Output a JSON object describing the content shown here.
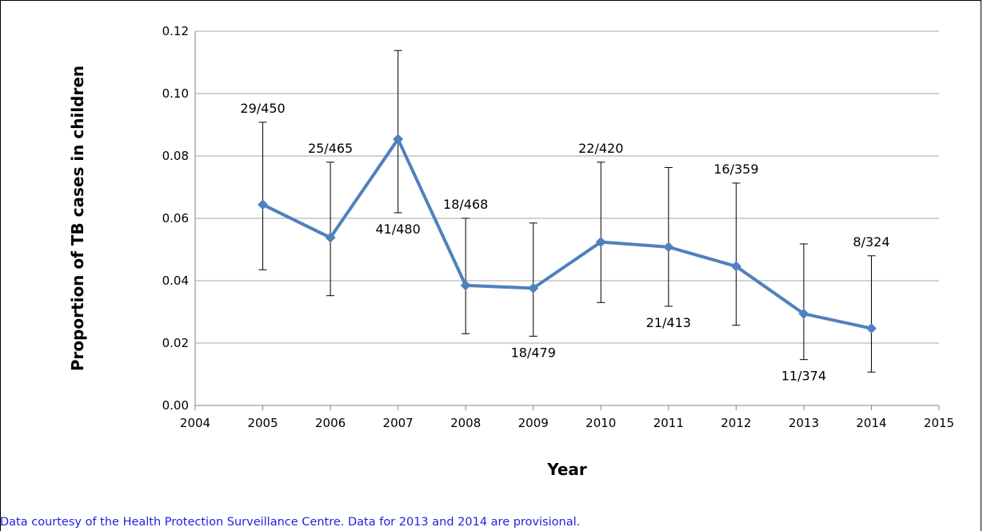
{
  "chart_data": {
    "type": "line",
    "title": "",
    "xlabel": "Year",
    "ylabel": "Proportion of TB cases in children",
    "xlim": [
      2004,
      2015
    ],
    "ylim": [
      0,
      0.12
    ],
    "x_ticks": [
      "2004",
      "2005",
      "2006",
      "2007",
      "2008",
      "2009",
      "2010",
      "2011",
      "2012",
      "2013",
      "2014",
      "2015"
    ],
    "y_ticks": [
      "0.00",
      "0.02",
      "0.04",
      "0.06",
      "0.08",
      "0.10",
      "0.12"
    ],
    "grid": "horizontal",
    "legend": "none",
    "series": [
      {
        "color": "#4f81bd",
        "x": [
          2005,
          2006,
          2007,
          2008,
          2009,
          2010,
          2011,
          2012,
          2013,
          2014
        ],
        "y": [
          0.0644,
          0.0538,
          0.0854,
          0.0385,
          0.0376,
          0.0524,
          0.0508,
          0.0446,
          0.0294,
          0.0247
        ],
        "error_low": [
          0.0435,
          0.0352,
          0.0618,
          0.023,
          0.0222,
          0.033,
          0.0318,
          0.0257,
          0.0147,
          0.0107
        ],
        "error_high": [
          0.0908,
          0.078,
          0.1138,
          0.06,
          0.0585,
          0.078,
          0.0763,
          0.0713,
          0.0518,
          0.048
        ],
        "labels": [
          "29/450",
          "25/465",
          "41/480",
          "18/468",
          "18/479",
          "22/420",
          "21/413",
          "16/359",
          "11/374",
          "8/324"
        ],
        "label_positions": [
          "above",
          "above",
          "below",
          "above",
          "below",
          "above",
          "below",
          "above",
          "below",
          "above"
        ]
      }
    ]
  },
  "footer": {
    "source_note": "Data courtesy of the Health Protection Surveillance Centre. Data for 2013 and 2014 are provisional."
  }
}
